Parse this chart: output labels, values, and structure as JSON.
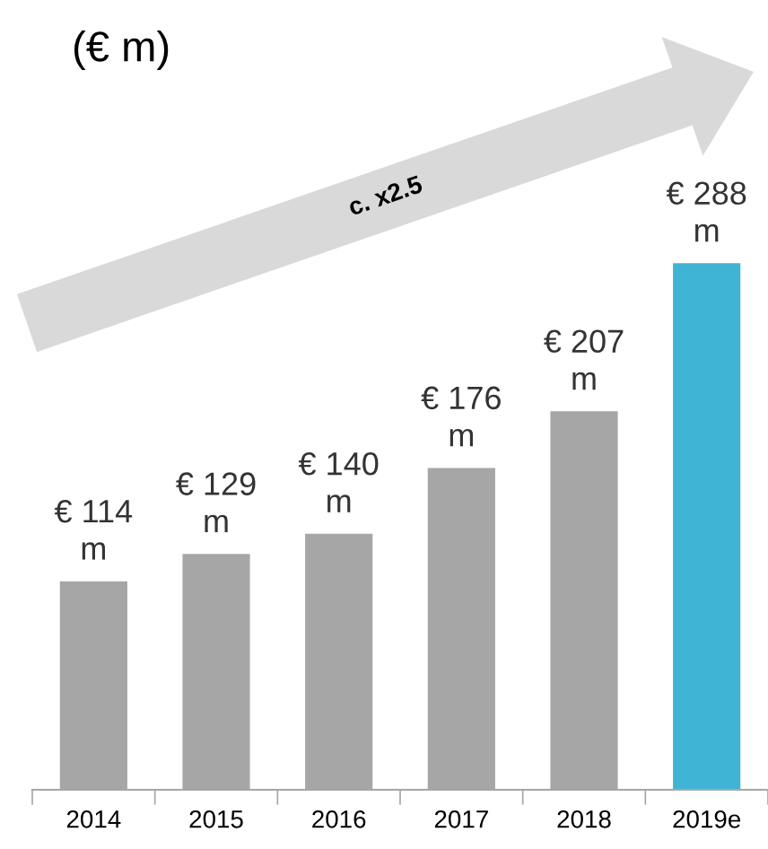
{
  "chart_data": {
    "type": "bar",
    "title": "(€ m)",
    "categories": [
      "2014",
      "2015",
      "2016",
      "2017",
      "2018",
      "2019e"
    ],
    "values": [
      114,
      129,
      140,
      176,
      207,
      288
    ],
    "colors": [
      "#a6a6a6",
      "#a6a6a6",
      "#a6a6a6",
      "#a6a6a6",
      "#a6a6a6",
      "#3fb4d4"
    ],
    "value_labels": [
      "€ 114 m",
      "€ 129 m",
      "€ 140 m",
      "€ 176 m",
      "€ 207 m",
      "€ 288 m"
    ],
    "annotations": [
      "c. x2.5"
    ],
    "grid": false,
    "legend": false
  }
}
